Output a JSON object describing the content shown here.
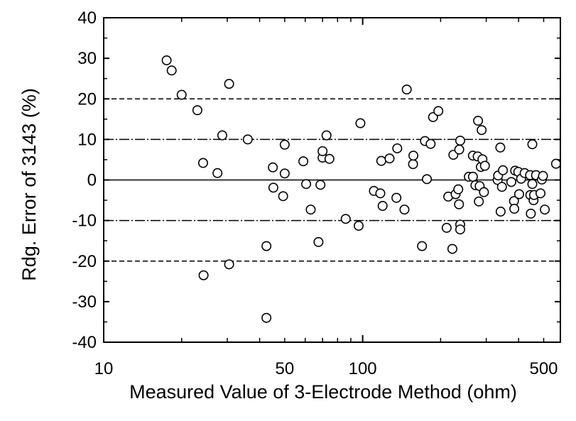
{
  "chart_data": {
    "type": "scatter",
    "title": "",
    "xlabel": "Measured Value of 3-Electrode Method (ohm)",
    "ylabel": "Rdg. Error of 3143 (%)",
    "x_scale": "log",
    "xlim": [
      10,
      580
    ],
    "ylim": [
      -40,
      40
    ],
    "x_ticks": [
      10,
      50,
      100,
      500
    ],
    "x_tick_labels": [
      "10",
      "50",
      "100",
      "500"
    ],
    "y_ticks": [
      -40,
      -30,
      -20,
      -10,
      0,
      10,
      20,
      30,
      40
    ],
    "y_tick_labels": [
      "-40",
      "-30",
      "-20",
      "-10",
      "0",
      "10",
      "20",
      "30",
      "40"
    ],
    "grid": false,
    "reference_lines": [
      {
        "y": 20,
        "style": "dashed"
      },
      {
        "y": 10,
        "style": "dash-dot"
      },
      {
        "y": 0,
        "style": "solid"
      },
      {
        "y": -10,
        "style": "dash-dot"
      },
      {
        "y": -20,
        "style": "dashed"
      }
    ],
    "series": [
      {
        "marker": "open-circle",
        "points": [
          [
            17.5,
            29.5
          ],
          [
            18.3,
            27
          ],
          [
            20,
            21
          ],
          [
            23,
            17.2
          ],
          [
            24.2,
            4.2
          ],
          [
            24.3,
            -23.5
          ],
          [
            27.5,
            1.7
          ],
          [
            28.7,
            11
          ],
          [
            30.5,
            23.7
          ],
          [
            30.5,
            -20.8
          ],
          [
            36,
            10
          ],
          [
            42.5,
            -16.3
          ],
          [
            42.5,
            -34
          ],
          [
            45,
            3.1
          ],
          [
            45.2,
            -1.9
          ],
          [
            49.3,
            -4
          ],
          [
            50,
            1.6
          ],
          [
            50,
            8.7
          ],
          [
            59,
            4.6
          ],
          [
            60.5,
            -1
          ],
          [
            63,
            -7.3
          ],
          [
            67.5,
            -15.3
          ],
          [
            68.7,
            -1.2
          ],
          [
            70,
            5.5
          ],
          [
            70,
            7.1
          ],
          [
            72.5,
            11
          ],
          [
            74.4,
            5.2
          ],
          [
            86,
            -9.6
          ],
          [
            96.5,
            -11.3
          ],
          [
            98,
            14
          ],
          [
            110.5,
            -2.7
          ],
          [
            117,
            -3.3
          ],
          [
            118,
            4.7
          ],
          [
            119.4,
            -6.4
          ],
          [
            127,
            5.3
          ],
          [
            135,
            -4.4
          ],
          [
            136,
            7.8
          ],
          [
            145,
            -7.3
          ],
          [
            148,
            22.3
          ],
          [
            156.5,
            3.9
          ],
          [
            157,
            6
          ],
          [
            169.5,
            -16.3
          ],
          [
            174,
            9.6
          ],
          [
            177,
            0.2
          ],
          [
            183,
            8.9
          ],
          [
            187,
            15.5
          ],
          [
            196,
            17
          ],
          [
            211,
            -11.8
          ],
          [
            214,
            -4.1
          ],
          [
            222,
            -17
          ],
          [
            224,
            6.2
          ],
          [
            228.5,
            -3.5
          ],
          [
            234,
            -2.3
          ],
          [
            235.5,
            -6
          ],
          [
            236,
            7.5
          ],
          [
            238,
            9.7
          ],
          [
            238,
            -11
          ],
          [
            238,
            -12.2
          ],
          [
            257,
            0.8
          ],
          [
            266.5,
            6
          ],
          [
            266.5,
            0.8
          ],
          [
            272.5,
            -1.3
          ],
          [
            278,
            5.8
          ],
          [
            279,
            14.6
          ],
          [
            281,
            -5.3
          ],
          [
            283,
            -1.5
          ],
          [
            286,
            3.2
          ],
          [
            288,
            12.3
          ],
          [
            290,
            5.1
          ],
          [
            294,
            -3
          ],
          [
            296.5,
            3.5
          ],
          [
            332,
            0
          ],
          [
            333.5,
            1.1
          ],
          [
            340,
            8
          ],
          [
            341,
            -7.8
          ],
          [
            345,
            -1.7
          ],
          [
            348,
            2.4
          ],
          [
            375,
            -0.5
          ],
          [
            384,
            -5.2
          ],
          [
            385,
            -7.1
          ],
          [
            388,
            2.3
          ],
          [
            399,
            2
          ],
          [
            402,
            -3.5
          ],
          [
            409,
            0.3
          ],
          [
            422,
            1.7
          ],
          [
            443,
            1.2
          ],
          [
            444,
            -3.7
          ],
          [
            446,
            -8.3
          ],
          [
            452,
            8.8
          ],
          [
            452,
            -1
          ],
          [
            457,
            -5
          ],
          [
            459,
            -3.7
          ],
          [
            467,
            1.2
          ],
          [
            486,
            -3.3
          ],
          [
            492,
            0.1
          ],
          [
            497,
            1
          ],
          [
            505,
            -7.3
          ],
          [
            558,
            4
          ]
        ]
      }
    ]
  }
}
